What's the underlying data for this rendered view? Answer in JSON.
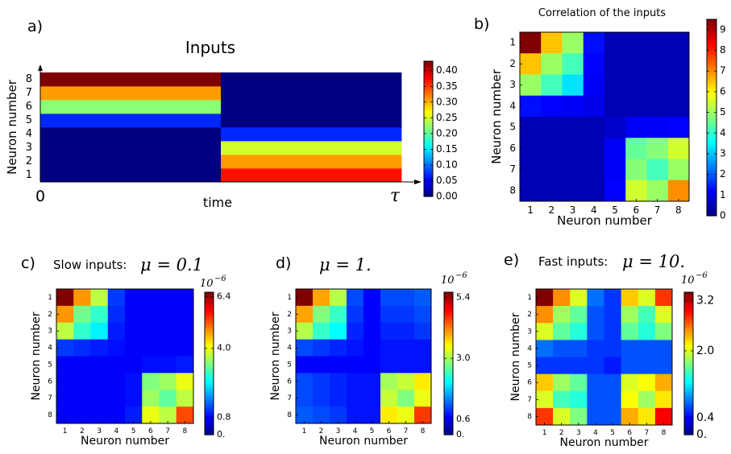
{
  "chart_data": [
    {
      "panel": "a)",
      "type": "heatmap",
      "title": "Inputs",
      "xlabel": "time",
      "ylabel": "Neuron number",
      "x_start_label": "0",
      "x_end_label": "τ",
      "yticks": [
        "1",
        "2",
        "3",
        "4",
        "5",
        "6",
        "7",
        "8"
      ],
      "colorbar_ticks": [
        "0.00",
        "0.05",
        "0.10",
        "0.15",
        "0.20",
        "0.25",
        "0.30",
        "0.35",
        "0.40"
      ],
      "colorbar_range": [
        0,
        0.43
      ],
      "segments": [
        {
          "values": [
            0.0,
            0.0,
            0.0,
            0.0,
            0.07,
            0.22,
            0.31,
            0.43
          ]
        },
        {
          "values": [
            0.37,
            0.31,
            0.25,
            0.07,
            0.0,
            0.0,
            0.0,
            0.0
          ]
        }
      ]
    },
    {
      "panel": "b)",
      "type": "heatmap",
      "title": "Correlation of the inputs",
      "xlabel": "Neuron number",
      "ylabel": "Neuron number",
      "ticks": [
        "1",
        "2",
        "3",
        "4",
        "5",
        "6",
        "7",
        "8"
      ],
      "colorbar_ticks": [
        "0",
        "1",
        "2",
        "3",
        "4",
        "5",
        "6",
        "7",
        "8",
        "9"
      ],
      "colorbar_range": [
        0,
        9.5
      ],
      "matrix": [
        [
          9.5,
          6.5,
          5.0,
          1.3,
          0.5,
          0.5,
          0.5,
          0.5
        ],
        [
          6.5,
          5.0,
          4.2,
          1.2,
          0.5,
          0.5,
          0.5,
          0.5
        ],
        [
          5.0,
          4.2,
          3.3,
          1.1,
          0.5,
          0.5,
          0.5,
          0.5
        ],
        [
          1.3,
          1.2,
          1.1,
          1.0,
          0.5,
          0.5,
          0.5,
          0.5
        ],
        [
          0.5,
          0.5,
          0.5,
          0.5,
          0.7,
          1.1,
          1.1,
          1.2
        ],
        [
          0.5,
          0.5,
          0.5,
          0.5,
          1.1,
          4.5,
          4.8,
          5.5
        ],
        [
          0.5,
          0.5,
          0.5,
          0.5,
          1.1,
          4.8,
          4.2,
          5.0
        ],
        [
          0.5,
          0.5,
          0.5,
          0.5,
          1.2,
          5.5,
          5.0,
          7.0
        ]
      ]
    },
    {
      "panel": "c)",
      "type": "heatmap",
      "title_text": "Slow inputs:",
      "title_math": "μ = 0.1",
      "scale_label": "10",
      "scale_exp": "−6",
      "xlabel": "Neuron number",
      "ylabel": "Neuron number",
      "ticks": [
        "1",
        "2",
        "3",
        "4",
        "5",
        "6",
        "7",
        "8"
      ],
      "colorbar_ticks": [
        {
          "label": "0.",
          "value": 0
        },
        {
          "label": "0.8",
          "value": 0.8
        },
        {
          "label": "4.0",
          "value": 4.0
        },
        {
          "label": "6.4",
          "value": 6.4
        }
      ],
      "colorbar_range": [
        0,
        6.6
      ],
      "matrix": [
        [
          6.6,
          4.8,
          3.7,
          1.2,
          0.8,
          0.8,
          0.8,
          0.8
        ],
        [
          4.8,
          3.2,
          2.8,
          1.1,
          0.8,
          0.8,
          0.8,
          0.8
        ],
        [
          3.7,
          2.8,
          2.4,
          1.0,
          0.8,
          0.8,
          0.8,
          0.8
        ],
        [
          1.2,
          1.1,
          1.0,
          0.9,
          0.8,
          0.8,
          0.8,
          0.8
        ],
        [
          0.8,
          0.8,
          0.8,
          0.8,
          0.8,
          0.9,
          0.9,
          1.0
        ],
        [
          0.8,
          0.8,
          0.8,
          0.8,
          0.9,
          3.3,
          3.5,
          4.0
        ],
        [
          0.8,
          0.8,
          0.8,
          0.8,
          0.9,
          3.5,
          3.1,
          3.7
        ],
        [
          0.8,
          0.8,
          0.8,
          0.8,
          1.0,
          4.0,
          3.7,
          5.3
        ]
      ]
    },
    {
      "panel": "d)",
      "type": "heatmap",
      "title_math": "μ = 1.",
      "scale_label": "10",
      "scale_exp": "−6",
      "xlabel": "Neuron number",
      "ylabel": "Neuron number",
      "ticks": [
        "1",
        "2",
        "3",
        "4",
        "5",
        "6",
        "7",
        "8"
      ],
      "colorbar_ticks": [
        {
          "label": "0.",
          "value": 0
        },
        {
          "label": "0.6",
          "value": 0.6
        },
        {
          "label": "3.0",
          "value": 3.0
        },
        {
          "label": "5.4",
          "value": 5.4
        }
      ],
      "colorbar_range": [
        0,
        5.6
      ],
      "matrix": [
        [
          5.6,
          4.0,
          3.1,
          1.1,
          0.7,
          1.1,
          1.1,
          1.2
        ],
        [
          4.0,
          2.8,
          2.4,
          1.0,
          0.7,
          1.0,
          1.0,
          1.1
        ],
        [
          3.1,
          2.4,
          2.1,
          0.9,
          0.7,
          0.9,
          0.9,
          1.0
        ],
        [
          1.1,
          1.0,
          0.9,
          0.8,
          0.7,
          0.8,
          0.8,
          0.8
        ],
        [
          0.7,
          0.7,
          0.7,
          0.7,
          0.7,
          0.8,
          0.8,
          0.8
        ],
        [
          1.1,
          1.0,
          0.9,
          0.8,
          0.8,
          3.0,
          3.2,
          3.6
        ],
        [
          1.1,
          1.0,
          0.9,
          0.8,
          0.8,
          3.2,
          2.8,
          3.4
        ],
        [
          1.2,
          1.1,
          1.0,
          0.8,
          0.8,
          3.6,
          3.4,
          4.6
        ]
      ]
    },
    {
      "panel": "e)",
      "type": "heatmap",
      "title_text": "Fast inputs:",
      "title_math": "μ = 10.",
      "scale_label": "10",
      "scale_exp": "−6",
      "xlabel": "Neuron number",
      "ylabel": "Neuron number",
      "ticks": [
        "1",
        "2",
        "3",
        "4",
        "5",
        "6",
        "7",
        "8"
      ],
      "colorbar_ticks": [
        {
          "label": "0.",
          "value": 0
        },
        {
          "label": "0.4",
          "value": 0.4
        },
        {
          "label": "2.0",
          "value": 2.0
        },
        {
          "label": "3.2",
          "value": 3.2
        }
      ],
      "colorbar_range": [
        0,
        3.4
      ],
      "matrix": [
        [
          3.4,
          2.5,
          2.0,
          0.8,
          0.6,
          2.3,
          2.0,
          2.8
        ],
        [
          2.5,
          1.8,
          1.6,
          0.7,
          0.6,
          1.8,
          1.5,
          2.0
        ],
        [
          2.0,
          1.6,
          1.4,
          0.7,
          0.6,
          1.6,
          1.4,
          1.7
        ],
        [
          0.8,
          0.7,
          0.7,
          0.6,
          0.6,
          0.7,
          0.7,
          0.7
        ],
        [
          0.6,
          0.6,
          0.6,
          0.6,
          0.5,
          0.7,
          0.7,
          0.7
        ],
        [
          2.3,
          1.8,
          1.6,
          0.7,
          0.7,
          2.0,
          2.1,
          2.4
        ],
        [
          2.0,
          1.5,
          1.4,
          0.7,
          0.7,
          2.1,
          1.8,
          2.2
        ],
        [
          2.8,
          2.0,
          1.7,
          0.7,
          0.7,
          2.4,
          2.2,
          3.0
        ]
      ]
    }
  ]
}
